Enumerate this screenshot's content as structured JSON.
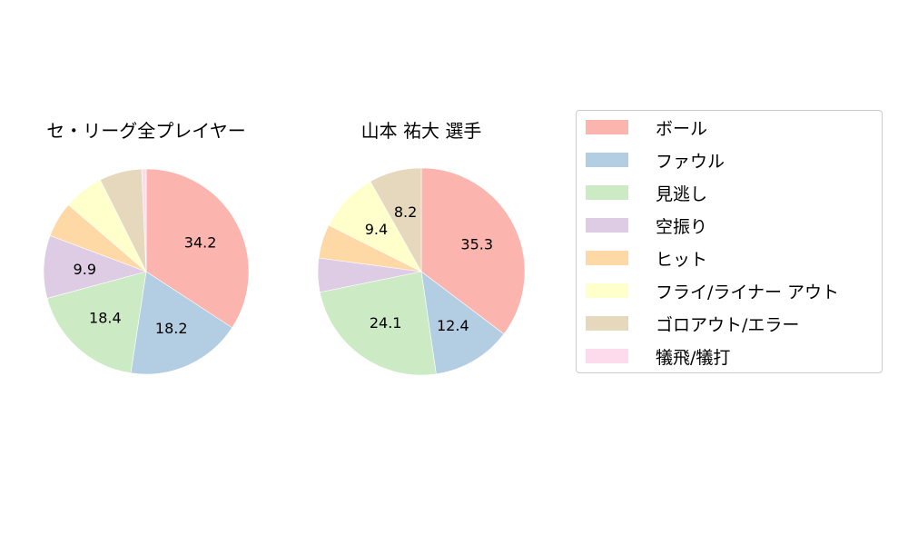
{
  "chart_data": [
    {
      "type": "pie",
      "title": "セ・リーグ全プレイヤー",
      "categories": [
        "ボール",
        "ファウル",
        "見逃し",
        "空振り",
        "ヒット",
        "フライ/ライナー アウト",
        "ゴロアウト/エラー",
        "犠飛/犠打"
      ],
      "values": [
        34.2,
        18.2,
        18.4,
        9.9,
        5.6,
        6.3,
        6.7,
        0.7
      ],
      "labels_shown": [
        "34.2",
        "18.2",
        "18.4",
        "9.9",
        "",
        "",
        "",
        ""
      ],
      "start_angle": 90,
      "direction": "clockwise"
    },
    {
      "type": "pie",
      "title": "山本 祐大  選手",
      "categories": [
        "ボール",
        "ファウル",
        "見逃し",
        "空振り",
        "ヒット",
        "フライ/ライナー アウト",
        "ゴロアウト/エラー",
        "犠飛/犠打"
      ],
      "values": [
        35.3,
        12.4,
        24.1,
        5.3,
        5.3,
        9.4,
        8.2,
        0.0
      ],
      "labels_shown": [
        "35.3",
        "12.4",
        "24.1",
        "",
        "",
        "9.4",
        "8.2",
        ""
      ],
      "start_angle": 90,
      "direction": "clockwise"
    }
  ],
  "legend": {
    "position": "right",
    "items": [
      {
        "label": "ボール",
        "color": "#fbb4ae"
      },
      {
        "label": "ファウル",
        "color": "#b3cde3"
      },
      {
        "label": "見逃し",
        "color": "#ccebc5"
      },
      {
        "label": "空振り",
        "color": "#decbe4"
      },
      {
        "label": "ヒット",
        "color": "#fed9a6"
      },
      {
        "label": "フライ/ライナー アウト",
        "color": "#ffffcc"
      },
      {
        "label": "ゴロアウト/エラー",
        "color": "#e5d8bd"
      },
      {
        "label": "犠飛/犠打",
        "color": "#fddaec"
      }
    ]
  },
  "titles": {
    "left": "セ・リーグ全プレイヤー",
    "right": "山本 祐大  選手"
  }
}
